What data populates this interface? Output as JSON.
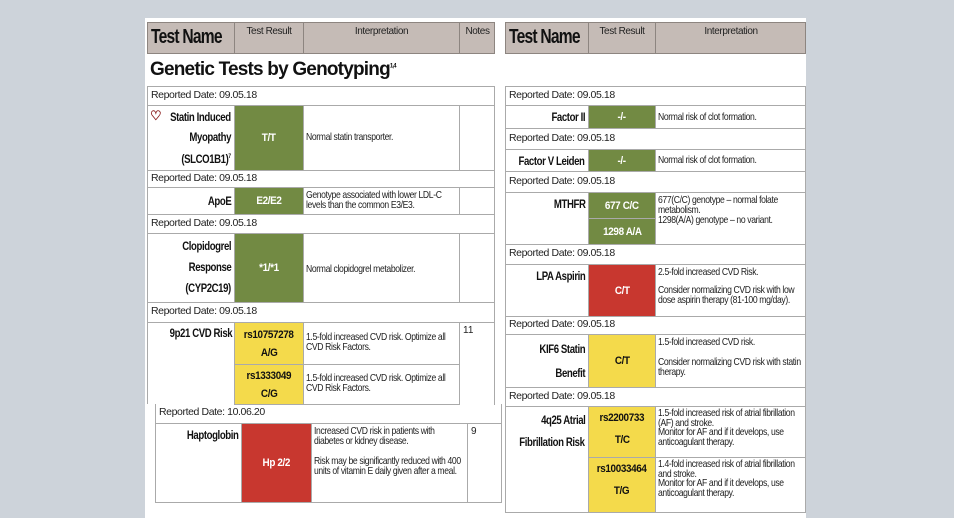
{
  "header": {
    "test_name": "Test Name",
    "test_result": "Test Result",
    "interpretation": "Interpretation",
    "notes": "Notes"
  },
  "title": "Genetic Tests by Genotyping",
  "title_sup": "1,4",
  "colors": {
    "green": "#728a43",
    "yellow": "#f4da4b",
    "red": "#c8372f",
    "header": "#c5bbb6"
  },
  "left": [
    {
      "date": "Reported Date: 09.05.18",
      "name": [
        "Statin Induced",
        "Myopathy",
        "(SLCO1B1)"
      ],
      "name_sup": "7",
      "icon": "apple-icon",
      "result": "T/T",
      "status": "green",
      "interpretation": "Normal statin transporter.",
      "notes": ""
    },
    {
      "date": "Reported Date: 09.05.18",
      "name": [
        "ApoE"
      ],
      "result": "E2/E2",
      "status": "green",
      "interpretation": "Genotype associated with lower LDL-C levels than the common E3/E3.",
      "notes": ""
    },
    {
      "date": "Reported Date: 09.05.18",
      "name": [
        "Clopidogrel",
        "Response",
        "(CYP2C19)"
      ],
      "result": "*1/*1",
      "status": "green",
      "interpretation": "Normal clopidogrel metabolizer.",
      "notes": ""
    },
    {
      "date": "Reported Date: 09.05.18",
      "name": [
        "9p21 CVD Risk"
      ],
      "notes": "11",
      "variants": [
        {
          "snp": "rs10757278",
          "result": "A/G",
          "status": "yellow",
          "interpretation": "1.5-fold increased CVD risk. Optimize all CVD Risk Factors."
        },
        {
          "snp": "rs1333049",
          "result": "C/G",
          "status": "yellow",
          "interpretation": "1.5-fold increased CVD risk. Optimize all CVD Risk Factors."
        }
      ]
    },
    {
      "date": "Reported Date: 10.06.20",
      "name": [
        "Haptoglobin"
      ],
      "result": "Hp 2/2",
      "status": "red",
      "interpretation": "Increased CVD risk in patients with diabetes or kidney disease.",
      "interpretation2": "Risk may be significantly reduced with 400 units of vitamin E daily given after a meal.",
      "notes": "9"
    }
  ],
  "right": [
    {
      "date": "Reported Date: 09.05.18",
      "name": [
        "Factor II"
      ],
      "result": "-/-",
      "status": "green",
      "interpretation": "Normal risk of clot formation."
    },
    {
      "date": "Reported Date: 09.05.18",
      "name": [
        "Factor V Leiden"
      ],
      "result": "-/-",
      "status": "green",
      "interpretation": "Normal risk of clot formation."
    },
    {
      "date": "Reported Date: 09.05.18",
      "name": [
        "MTHFR"
      ],
      "results": [
        "677 C/C",
        "1298 A/A"
      ],
      "status": "green",
      "interpretation": "677(C/C) genotype – normal folate metabolism.",
      "interpretation2": "1298(A/A) genotype – no variant."
    },
    {
      "date": "Reported Date: 09.05.18",
      "name": [
        "LPA Aspirin"
      ],
      "result": "C/T",
      "status": "red",
      "interpretation": "2.5-fold increased CVD Risk.",
      "interpretation2": "Consider normalizing CVD risk with low dose aspirin therapy (81-100 mg/day)."
    },
    {
      "date": "Reported Date: 09.05.18",
      "name": [
        "KIF6 Statin",
        "Benefit"
      ],
      "result": "C/T",
      "status": "yellow",
      "interpretation": "1.5-fold increased CVD risk.",
      "interpretation2": "Consider normalizing CVD risk with statin therapy."
    },
    {
      "date": "Reported Date: 09.05.18",
      "name": [
        "4q25 Atrial",
        "Fibrillation Risk"
      ],
      "variants": [
        {
          "snp": "rs2200733",
          "result": "T/C",
          "status": "yellow",
          "interpretation": "1.5-fold increased risk of atrial fibrillation (AF) and stroke.",
          "interpretation2": "Monitor for AF and if it develops, use anticoagulant therapy."
        },
        {
          "snp": "rs10033464",
          "result": "T/G",
          "status": "yellow",
          "interpretation": "1.4-fold increased risk of atrial fibrillation and stroke.",
          "interpretation2": "Monitor for AF and if it develops, use anticoagulant therapy."
        }
      ]
    }
  ]
}
